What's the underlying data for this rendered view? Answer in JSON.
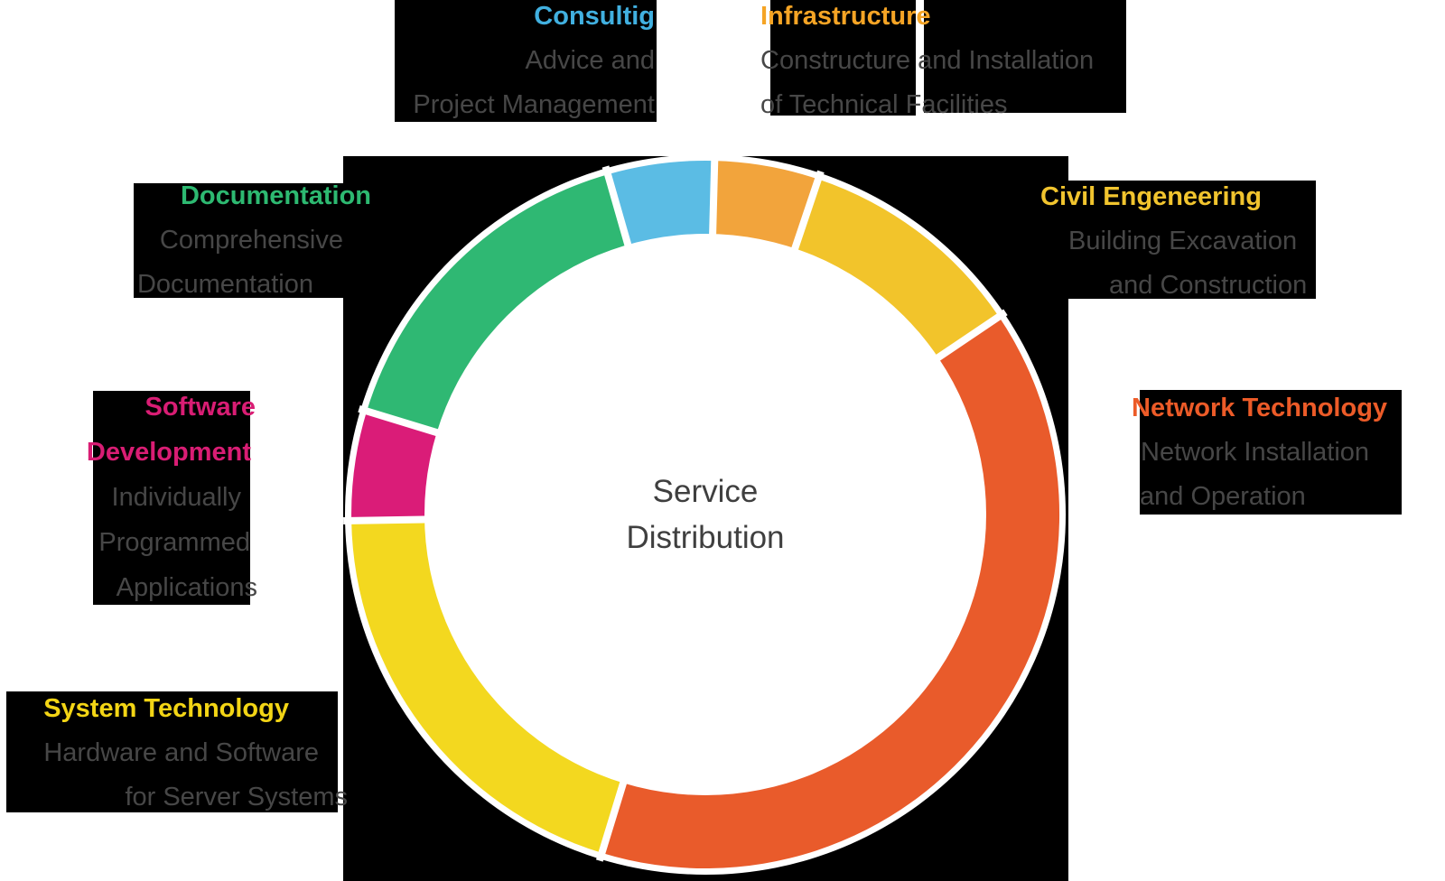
{
  "chart_data": {
    "type": "pie",
    "subtype": "donut",
    "title": "Service Distribution",
    "center_label_lines": [
      "Service",
      "Distribution"
    ],
    "background_color": "#000000",
    "ring_outline_color": "#ffffff",
    "legend_position": "around-chart",
    "segments": [
      {
        "label": "Consultig",
        "description_lines": [
          "Advice and",
          "Project Management"
        ],
        "value_pct": 5,
        "color": "#5bbce4",
        "title_color": "#41b0e0",
        "start_deg": 344.0,
        "sweep_deg": 17.5
      },
      {
        "label": "Infrastructure",
        "description_lines": [
          "Constructure and Installation",
          "of Technical Facilities"
        ],
        "value_pct": 5,
        "color": "#f2a43c",
        "title_color": "#f5a425",
        "start_deg": 1.5,
        "sweep_deg": 17.1
      },
      {
        "label": "Civil Engeneering",
        "description_lines": [
          "Building Excavation",
          "and Construction"
        ],
        "value_pct": 10,
        "color": "#f2c42b",
        "title_color": "#f1c42e",
        "start_deg": 18.6,
        "sweep_deg": 37.4
      },
      {
        "label": "Network Technology",
        "description_lines": [
          "Network Installation",
          "and Operation"
        ],
        "value_pct": 40,
        "color": "#e95b2b",
        "title_color": "#ec5b28",
        "start_deg": 56.0,
        "sweep_deg": 141.0
      },
      {
        "label": "System Technology",
        "description_lines": [
          "Hardware and Software",
          "for Server Systems"
        ],
        "value_pct": 20,
        "color": "#f3d81f",
        "title_color": "#f3d515",
        "start_deg": 197.0,
        "sweep_deg": 72.0
      },
      {
        "label": "Software Development",
        "title_lines": [
          "Software",
          "Development"
        ],
        "description_lines": [
          "Individually",
          "Programmed",
          "Applications"
        ],
        "value_pct": 5,
        "color": "#da1c78",
        "title_color": "#d91d74",
        "start_deg": 269.0,
        "sweep_deg": 18.0
      },
      {
        "label": "Documentation",
        "description_lines": [
          "Comprehensive",
          "Documentation"
        ],
        "value_pct": 15,
        "color": "#2fb873",
        "title_color": "#2db971",
        "start_deg": 287.0,
        "sweep_deg": 57.0
      }
    ]
  },
  "labels": {
    "consulting": {
      "title": "Consultig",
      "lines": [
        "Advice and",
        "Project Management"
      ]
    },
    "infrastructure": {
      "title": "Infrastructure",
      "lines": [
        "Constructure and Installation",
        "of Technical Facilities"
      ]
    },
    "civil": {
      "title": "Civil Engeneering",
      "lines": [
        "Building Excavation",
        "and Construction"
      ]
    },
    "network": {
      "title": "Network Technology",
      "lines": [
        "Network Installation",
        "and Operation"
      ]
    },
    "system": {
      "title": "System Technology",
      "lines": [
        "Hardware and Software",
        "for Server Systems"
      ]
    },
    "software": {
      "title_lines": [
        "Software",
        "Development"
      ],
      "lines": [
        "Individually",
        "Programmed",
        "Applications"
      ]
    },
    "documentation": {
      "title": "Documentation",
      "lines": [
        "Comprehensive",
        "Documentation"
      ]
    }
  }
}
